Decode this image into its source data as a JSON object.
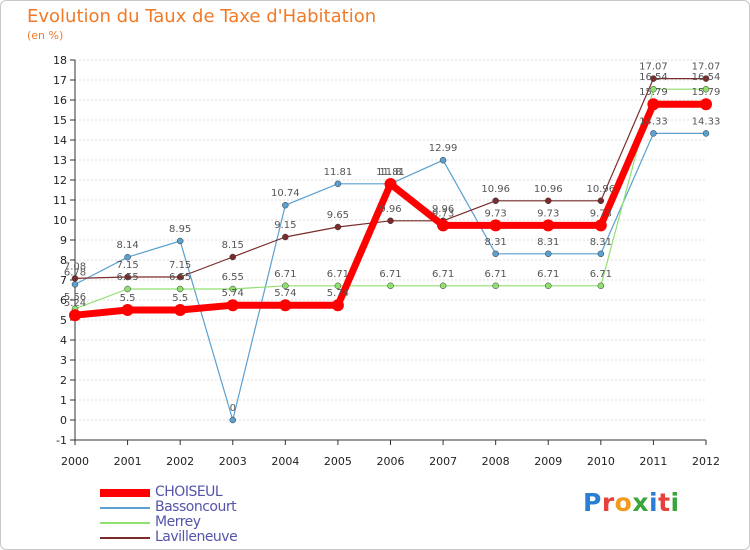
{
  "title": "Evolution du Taux de Taxe d'Habitation",
  "subtitle": "(en %)",
  "logo": {
    "text": "Proxiti",
    "colors": [
      "#2a7fd4",
      "#e8403a",
      "#f29b1c",
      "#3aa63a",
      "#2a7fd4",
      "#e8403a",
      "#3aa63a"
    ]
  },
  "chart_data": {
    "type": "line",
    "title": "Evolution du Taux de Taxe d'Habitation",
    "subtitle": "(en %)",
    "x": [
      "2000",
      "2001",
      "2002",
      "2003",
      "2004",
      "2005",
      "2006",
      "2007",
      "2008",
      "2009",
      "2010",
      "2011",
      "2012"
    ],
    "ylim": [
      -1,
      18
    ],
    "yticks": [
      "-1",
      "0",
      "1",
      "2",
      "3",
      "4",
      "5",
      "6",
      "7",
      "8",
      "9",
      "10",
      "11",
      "12",
      "13",
      "14",
      "15",
      "16",
      "17",
      "18"
    ],
    "grid": "horizontal",
    "legend_position": "bottom-left",
    "series": [
      {
        "name": "CHOISEUL",
        "color": "#ff0000",
        "width": 7,
        "values": [
          5.24,
          5.5,
          5.5,
          5.74,
          5.74,
          5.74,
          11.8,
          9.73,
          9.73,
          9.73,
          9.73,
          15.79,
          15.79
        ],
        "labels": [
          "5.24",
          "5.5",
          "5.5",
          "5.74",
          "5.74",
          "5.74",
          "11.8",
          "9.73",
          "9.73",
          "9.73",
          "9.73",
          "15.79",
          "15.79"
        ]
      },
      {
        "name": "Bassoncourt",
        "color": "#5aa0d0",
        "width": 1.2,
        "values": [
          6.78,
          8.14,
          8.95,
          0,
          10.74,
          11.81,
          11.81,
          12.99,
          8.31,
          8.31,
          8.31,
          14.33,
          14.33
        ],
        "labels": [
          "6.78",
          "8.14",
          "8.95",
          "0",
          "10.74",
          "11.81",
          "11.81",
          "12.99",
          "8.31",
          "8.31",
          "8.31",
          "14.33",
          "14.33"
        ]
      },
      {
        "name": "Merrey",
        "color": "#90e070",
        "width": 1.2,
        "values": [
          5.56,
          6.55,
          6.55,
          6.55,
          6.71,
          6.71,
          6.71,
          6.71,
          6.71,
          6.71,
          6.71,
          16.54,
          16.54
        ],
        "labels": [
          "5.56",
          "6.55",
          "6.55",
          "6.55",
          "6.71",
          "6.71",
          "6.71",
          "6.71",
          "6.71",
          "6.71",
          "6.71",
          "16.54",
          "16.54"
        ]
      },
      {
        "name": "Lavilleneuve",
        "color": "#7a2b2b",
        "width": 1.2,
        "values": [
          7.08,
          7.15,
          7.15,
          8.15,
          9.15,
          9.65,
          9.96,
          9.96,
          10.96,
          10.96,
          10.96,
          17.07,
          17.07
        ],
        "labels": [
          "7.08",
          "7.15",
          "7.15",
          "8.15",
          "9.15",
          "9.65",
          "9.96",
          "9.96",
          "10.96",
          "10.96",
          "10.96",
          "17.07",
          "17.07"
        ]
      }
    ]
  }
}
